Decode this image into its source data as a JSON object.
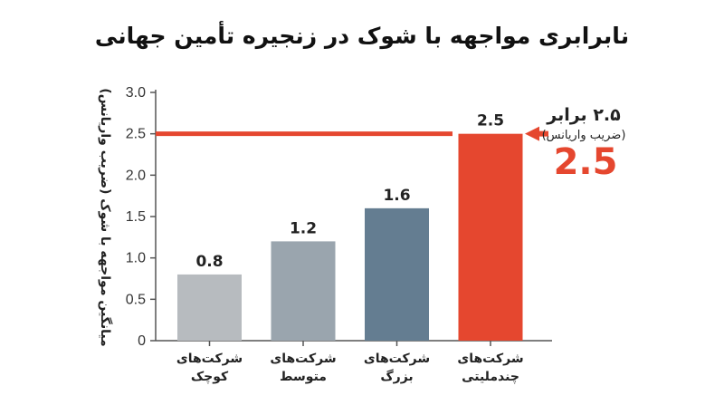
{
  "colors": {
    "small": "#b7bbbf",
    "medium": "#9aa5ae",
    "large": "#647d91",
    "multinational": "#e5472f",
    "reference_line": "#e5472f",
    "axis": "#555555",
    "text": "#222222"
  },
  "chart_data": {
    "type": "bar",
    "title": "نابرابری مواجهه با شوک در زنجیره تأمین جهانی",
    "ylabel": "میانگین مواجهه با شوک (ضریب واریانس)",
    "xlabel": "",
    "ylim": [
      0,
      3.0
    ],
    "yticks": [
      "0",
      "0.5",
      "1.0",
      "1.5",
      "2.0",
      "2.5",
      "3.0"
    ],
    "grid": false,
    "categories": [
      [
        "شرکت‌های",
        "کوچک"
      ],
      [
        "شرکت‌های",
        "متوسط"
      ],
      [
        "شرکت‌های",
        "بزرگ"
      ],
      [
        "شرکت‌های",
        "چندملیتی"
      ]
    ],
    "values": [
      0.8,
      1.2,
      1.6,
      2.5
    ],
    "value_labels": [
      "0.8",
      "1.2",
      "1.6",
      "2.5"
    ],
    "reference_line": 2.5,
    "annotation": {
      "line1": "۲.۵ برابر",
      "line2": "(ضریب واریانس)",
      "big": "2.5"
    }
  }
}
